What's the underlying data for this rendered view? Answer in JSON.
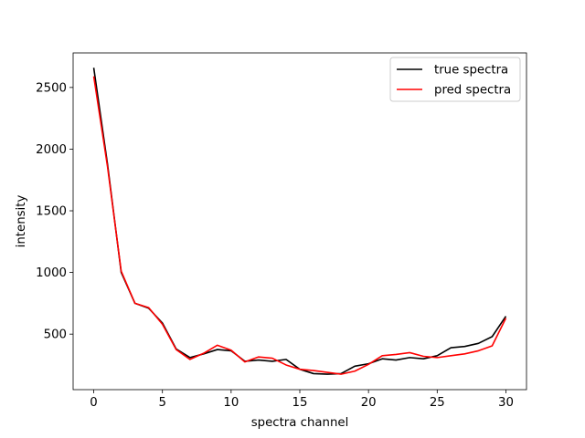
{
  "chart_data": {
    "type": "line",
    "title": "",
    "xlabel": "spectra channel",
    "ylabel": "intensity",
    "xlim": [
      -1.5,
      31.5
    ],
    "ylim": [
      50,
      2780
    ],
    "xticks": [
      0,
      5,
      10,
      15,
      20,
      25,
      30
    ],
    "yticks": [
      500,
      1000,
      1500,
      2000,
      2500
    ],
    "grid": false,
    "legend_position": "top-right",
    "x": [
      0,
      1,
      2,
      3,
      4,
      5,
      6,
      7,
      8,
      9,
      10,
      11,
      12,
      13,
      14,
      15,
      16,
      17,
      18,
      19,
      20,
      21,
      22,
      23,
      24,
      25,
      26,
      27,
      28,
      29,
      30
    ],
    "series": [
      {
        "name": "true spectra",
        "color": "#000000",
        "values": [
          2660,
          1880,
          1000,
          750,
          710,
          590,
          380,
          310,
          340,
          375,
          365,
          280,
          290,
          280,
          295,
          215,
          180,
          175,
          180,
          240,
          260,
          300,
          290,
          310,
          300,
          325,
          390,
          400,
          425,
          480,
          645
        ]
      },
      {
        "name": "pred spectra",
        "color": "#ff0000",
        "values": [
          2590,
          1860,
          1010,
          750,
          715,
          580,
          375,
          295,
          345,
          410,
          370,
          275,
          315,
          305,
          250,
          215,
          205,
          190,
          175,
          200,
          255,
          325,
          335,
          350,
          320,
          310,
          325,
          340,
          365,
          405,
          630
        ]
      }
    ]
  }
}
